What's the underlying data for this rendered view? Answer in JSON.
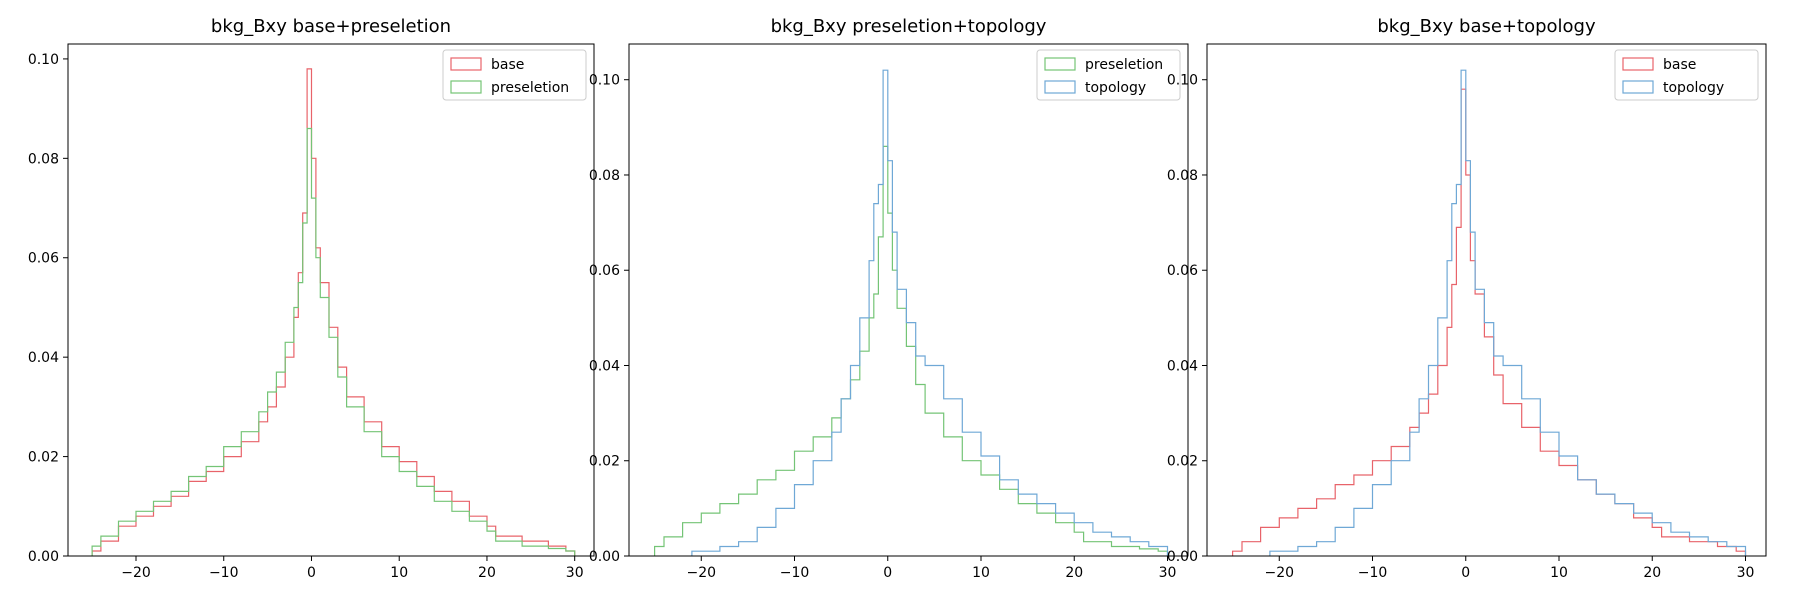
{
  "chart_data": [
    {
      "type": "histogram",
      "title": "bkg_Bxy base+preseletion",
      "xlabel": "",
      "ylabel": "",
      "xlim": [
        -27.75,
        32.2
      ],
      "ylim": [
        0,
        0.103
      ],
      "xticks": [
        -20,
        -10,
        0,
        10,
        20,
        30
      ],
      "yticks": [
        0.0,
        0.02,
        0.04,
        0.06,
        0.08,
        0.1
      ],
      "ytick_labels": [
        "0.00",
        "0.02",
        "0.04",
        "0.06",
        "0.08",
        "0.10"
      ],
      "legend_position": "top-right",
      "series": [
        {
          "name": "base",
          "color": "#e8636a",
          "points": [
            [
              -25,
              0
            ],
            [
              -25,
              0.001
            ],
            [
              -24,
              0.003
            ],
            [
              -22,
              0.006
            ],
            [
              -20,
              0.008
            ],
            [
              -18,
              0.01
            ],
            [
              -16,
              0.012
            ],
            [
              -14,
              0.015
            ],
            [
              -12,
              0.017
            ],
            [
              -10,
              0.02
            ],
            [
              -8,
              0.023
            ],
            [
              -6,
              0.027
            ],
            [
              -5,
              0.03
            ],
            [
              -4,
              0.034
            ],
            [
              -3,
              0.04
            ],
            [
              -2,
              0.048
            ],
            [
              -1.5,
              0.057
            ],
            [
              -1,
              0.069
            ],
            [
              -0.5,
              0.098
            ],
            [
              0,
              0.08
            ],
            [
              0.5,
              0.062
            ],
            [
              1,
              0.055
            ],
            [
              2,
              0.046
            ],
            [
              3,
              0.038
            ],
            [
              4,
              0.032
            ],
            [
              6,
              0.027
            ],
            [
              8,
              0.022
            ],
            [
              10,
              0.019
            ],
            [
              12,
              0.016
            ],
            [
              14,
              0.013
            ],
            [
              16,
              0.011
            ],
            [
              18,
              0.008
            ],
            [
              20,
              0.006
            ],
            [
              21,
              0.004
            ],
            [
              24,
              0.003
            ],
            [
              27,
              0.002
            ],
            [
              29,
              0.001
            ],
            [
              30,
              0
            ]
          ]
        },
        {
          "name": "preseletion",
          "color": "#74c476",
          "points": [
            [
              -25,
              0
            ],
            [
              -25,
              0.002
            ],
            [
              -24,
              0.004
            ],
            [
              -22,
              0.007
            ],
            [
              -20,
              0.009
            ],
            [
              -18,
              0.011
            ],
            [
              -16,
              0.013
            ],
            [
              -14,
              0.016
            ],
            [
              -12,
              0.018
            ],
            [
              -10,
              0.022
            ],
            [
              -8,
              0.025
            ],
            [
              -6,
              0.029
            ],
            [
              -5,
              0.033
            ],
            [
              -4,
              0.037
            ],
            [
              -3,
              0.043
            ],
            [
              -2,
              0.05
            ],
            [
              -1.5,
              0.055
            ],
            [
              -1,
              0.067
            ],
            [
              -0.5,
              0.086
            ],
            [
              0,
              0.072
            ],
            [
              0.5,
              0.06
            ],
            [
              1,
              0.052
            ],
            [
              2,
              0.044
            ],
            [
              3,
              0.036
            ],
            [
              4,
              0.03
            ],
            [
              6,
              0.025
            ],
            [
              8,
              0.02
            ],
            [
              10,
              0.017
            ],
            [
              12,
              0.014
            ],
            [
              14,
              0.011
            ],
            [
              16,
              0.009
            ],
            [
              18,
              0.007
            ],
            [
              20,
              0.005
            ],
            [
              21,
              0.003
            ],
            [
              24,
              0.002
            ],
            [
              27,
              0.0015
            ],
            [
              29,
              0.001
            ],
            [
              30,
              0
            ]
          ]
        }
      ]
    },
    {
      "type": "histogram",
      "title": "bkg_Bxy preseletion+topology",
      "xlabel": "",
      "ylabel": "",
      "xlim": [
        -27.75,
        32.2
      ],
      "ylim": [
        0,
        0.1075
      ],
      "xticks": [
        -20,
        -10,
        0,
        10,
        20,
        30
      ],
      "yticks": [
        0.0,
        0.02,
        0.04,
        0.06,
        0.08,
        0.1
      ],
      "ytick_labels": [
        "0.00",
        "0.02",
        "0.04",
        "0.06",
        "0.08",
        "0.10"
      ],
      "legend_position": "top-right",
      "series": [
        {
          "name": "preseletion",
          "color": "#74c476",
          "points": [
            [
              -25,
              0
            ],
            [
              -25,
              0.002
            ],
            [
              -24,
              0.004
            ],
            [
              -22,
              0.007
            ],
            [
              -20,
              0.009
            ],
            [
              -18,
              0.011
            ],
            [
              -16,
              0.013
            ],
            [
              -14,
              0.016
            ],
            [
              -12,
              0.018
            ],
            [
              -10,
              0.022
            ],
            [
              -8,
              0.025
            ],
            [
              -6,
              0.029
            ],
            [
              -5,
              0.033
            ],
            [
              -4,
              0.037
            ],
            [
              -3,
              0.043
            ],
            [
              -2,
              0.05
            ],
            [
              -1.5,
              0.055
            ],
            [
              -1,
              0.067
            ],
            [
              -0.5,
              0.086
            ],
            [
              0,
              0.072
            ],
            [
              0.5,
              0.06
            ],
            [
              1,
              0.052
            ],
            [
              2,
              0.044
            ],
            [
              3,
              0.036
            ],
            [
              4,
              0.03
            ],
            [
              6,
              0.025
            ],
            [
              8,
              0.02
            ],
            [
              10,
              0.017
            ],
            [
              12,
              0.014
            ],
            [
              14,
              0.011
            ],
            [
              16,
              0.009
            ],
            [
              18,
              0.007
            ],
            [
              20,
              0.005
            ],
            [
              21,
              0.003
            ],
            [
              24,
              0.002
            ],
            [
              27,
              0.0015
            ],
            [
              29,
              0.001
            ],
            [
              30,
              0
            ]
          ]
        },
        {
          "name": "topology",
          "color": "#6fa8d6",
          "points": [
            [
              -21,
              0
            ],
            [
              -21,
              0.001
            ],
            [
              -18,
              0.002
            ],
            [
              -16,
              0.003
            ],
            [
              -14,
              0.006
            ],
            [
              -12,
              0.01
            ],
            [
              -10,
              0.015
            ],
            [
              -8,
              0.02
            ],
            [
              -6,
              0.026
            ],
            [
              -5,
              0.033
            ],
            [
              -4,
              0.04
            ],
            [
              -3,
              0.05
            ],
            [
              -2,
              0.062
            ],
            [
              -1.5,
              0.074
            ],
            [
              -1,
              0.078
            ],
            [
              -0.5,
              0.102
            ],
            [
              0,
              0.083
            ],
            [
              0.5,
              0.068
            ],
            [
              1,
              0.056
            ],
            [
              2,
              0.049
            ],
            [
              3,
              0.042
            ],
            [
              4,
              0.04
            ],
            [
              6,
              0.033
            ],
            [
              8,
              0.026
            ],
            [
              10,
              0.021
            ],
            [
              12,
              0.016
            ],
            [
              14,
              0.013
            ],
            [
              16,
              0.011
            ],
            [
              18,
              0.009
            ],
            [
              20,
              0.007
            ],
            [
              22,
              0.005
            ],
            [
              24,
              0.004
            ],
            [
              26,
              0.003
            ],
            [
              28,
              0.002
            ],
            [
              30,
              0
            ]
          ]
        }
      ]
    },
    {
      "type": "histogram",
      "title": "bkg_Bxy base+topology",
      "xlabel": "",
      "ylabel": "",
      "xlim": [
        -27.75,
        32.2
      ],
      "ylim": [
        0,
        0.1075
      ],
      "xticks": [
        -20,
        -10,
        0,
        10,
        20,
        30
      ],
      "yticks": [
        0.0,
        0.02,
        0.04,
        0.06,
        0.08,
        0.1
      ],
      "ytick_labels": [
        "0.00",
        "0.02",
        "0.04",
        "0.06",
        "0.08",
        "0.10"
      ],
      "legend_position": "top-right",
      "series": [
        {
          "name": "base",
          "color": "#e8636a",
          "points": [
            [
              -25,
              0
            ],
            [
              -25,
              0.001
            ],
            [
              -24,
              0.003
            ],
            [
              -22,
              0.006
            ],
            [
              -20,
              0.008
            ],
            [
              -18,
              0.01
            ],
            [
              -16,
              0.012
            ],
            [
              -14,
              0.015
            ],
            [
              -12,
              0.017
            ],
            [
              -10,
              0.02
            ],
            [
              -8,
              0.023
            ],
            [
              -6,
              0.027
            ],
            [
              -5,
              0.03
            ],
            [
              -4,
              0.034
            ],
            [
              -3,
              0.04
            ],
            [
              -2,
              0.048
            ],
            [
              -1.5,
              0.057
            ],
            [
              -1,
              0.069
            ],
            [
              -0.5,
              0.098
            ],
            [
              0,
              0.08
            ],
            [
              0.5,
              0.062
            ],
            [
              1,
              0.055
            ],
            [
              2,
              0.046
            ],
            [
              3,
              0.038
            ],
            [
              4,
              0.032
            ],
            [
              6,
              0.027
            ],
            [
              8,
              0.022
            ],
            [
              10,
              0.019
            ],
            [
              12,
              0.016
            ],
            [
              14,
              0.013
            ],
            [
              16,
              0.011
            ],
            [
              18,
              0.008
            ],
            [
              20,
              0.006
            ],
            [
              21,
              0.004
            ],
            [
              24,
              0.003
            ],
            [
              27,
              0.002
            ],
            [
              29,
              0.001
            ],
            [
              30,
              0
            ]
          ]
        },
        {
          "name": "topology",
          "color": "#6fa8d6",
          "points": [
            [
              -21,
              0
            ],
            [
              -21,
              0.001
            ],
            [
              -18,
              0.002
            ],
            [
              -16,
              0.003
            ],
            [
              -14,
              0.006
            ],
            [
              -12,
              0.01
            ],
            [
              -10,
              0.015
            ],
            [
              -8,
              0.02
            ],
            [
              -6,
              0.026
            ],
            [
              -5,
              0.033
            ],
            [
              -4,
              0.04
            ],
            [
              -3,
              0.05
            ],
            [
              -2,
              0.062
            ],
            [
              -1.5,
              0.074
            ],
            [
              -1,
              0.078
            ],
            [
              -0.5,
              0.102
            ],
            [
              0,
              0.083
            ],
            [
              0.5,
              0.068
            ],
            [
              1,
              0.056
            ],
            [
              2,
              0.049
            ],
            [
              3,
              0.042
            ],
            [
              4,
              0.04
            ],
            [
              6,
              0.033
            ],
            [
              8,
              0.026
            ],
            [
              10,
              0.021
            ],
            [
              12,
              0.016
            ],
            [
              14,
              0.013
            ],
            [
              16,
              0.011
            ],
            [
              18,
              0.009
            ],
            [
              20,
              0.007
            ],
            [
              22,
              0.005
            ],
            [
              24,
              0.004
            ],
            [
              26,
              0.003
            ],
            [
              28,
              0.002
            ],
            [
              30,
              0
            ]
          ]
        }
      ]
    }
  ]
}
